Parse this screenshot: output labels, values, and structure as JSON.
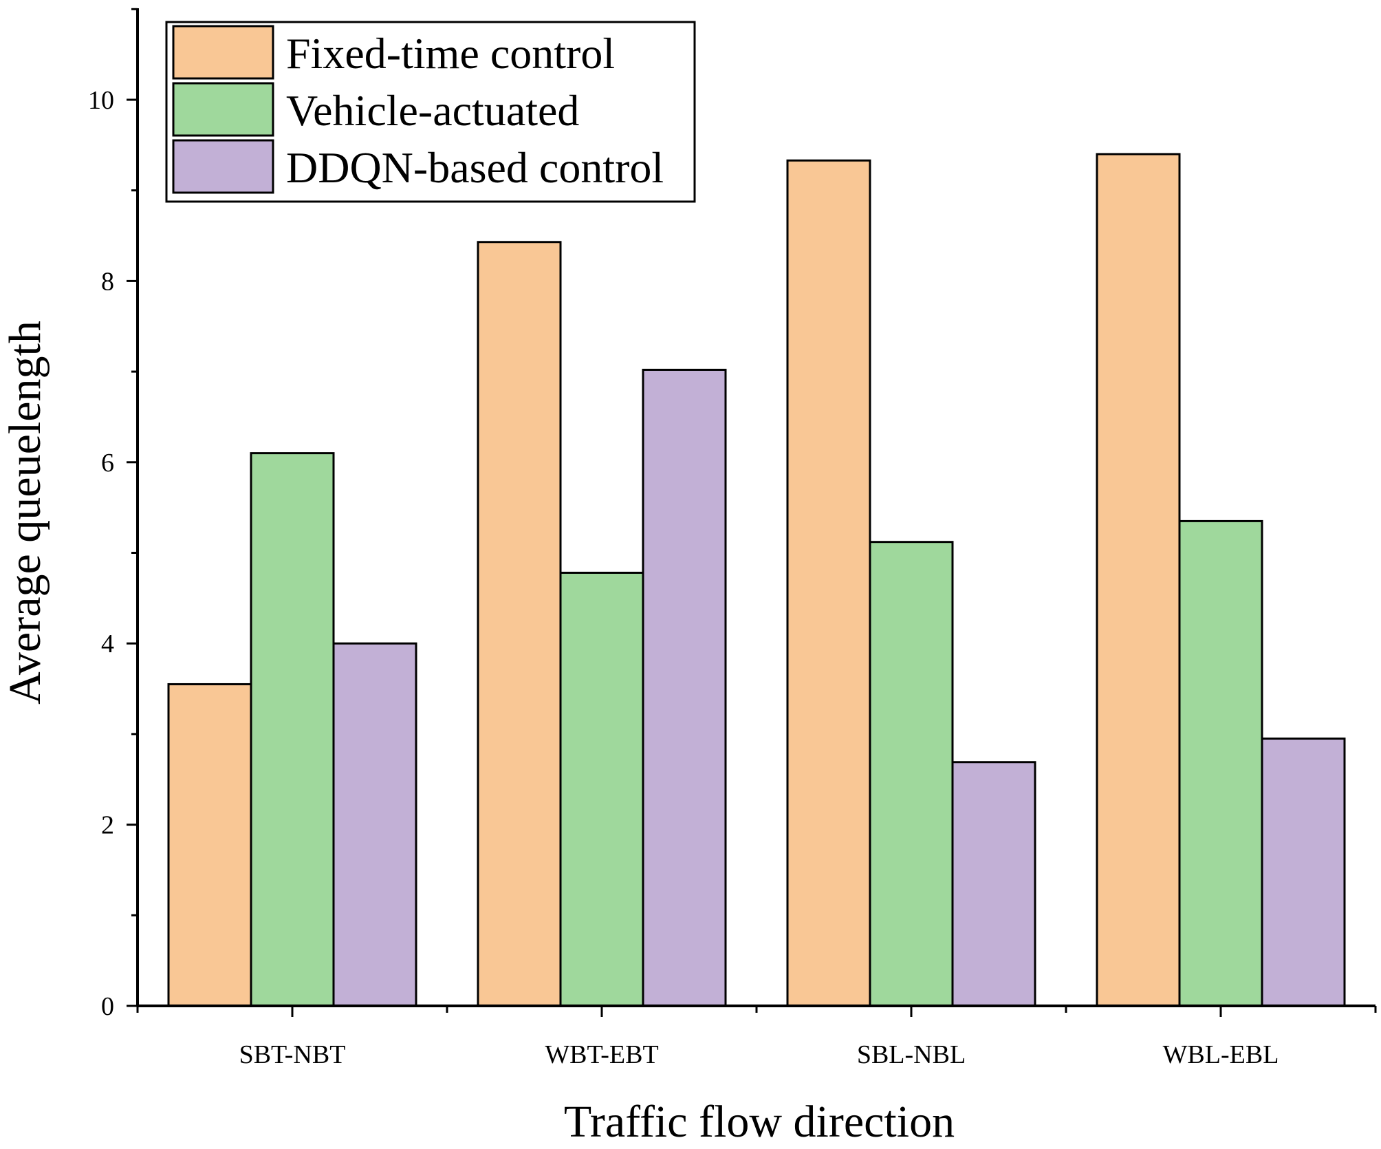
{
  "chart_data": {
    "type": "bar",
    "title": "",
    "xlabel": "Traffic flow direction",
    "ylabel": "Average queuelength",
    "categories": [
      "SBT-NBT",
      "WBT-EBT",
      "SBL-NBL",
      "WBL-EBL"
    ],
    "series": [
      {
        "name": "Fixed-time control",
        "color": "#f9c795",
        "values": [
          3.55,
          8.43,
          9.33,
          9.4
        ]
      },
      {
        "name": "Vehicle-actuated",
        "color": "#9fd89c",
        "values": [
          6.1,
          4.78,
          5.12,
          5.35
        ]
      },
      {
        "name": "DDQN-based control",
        "color": "#c2b0d6",
        "values": [
          4.0,
          7.02,
          2.69,
          2.95
        ]
      }
    ],
    "ylim": [
      0,
      11
    ],
    "yticks": [
      0,
      2,
      4,
      6,
      8,
      10
    ],
    "legend_position": "top-left",
    "grid": false
  }
}
